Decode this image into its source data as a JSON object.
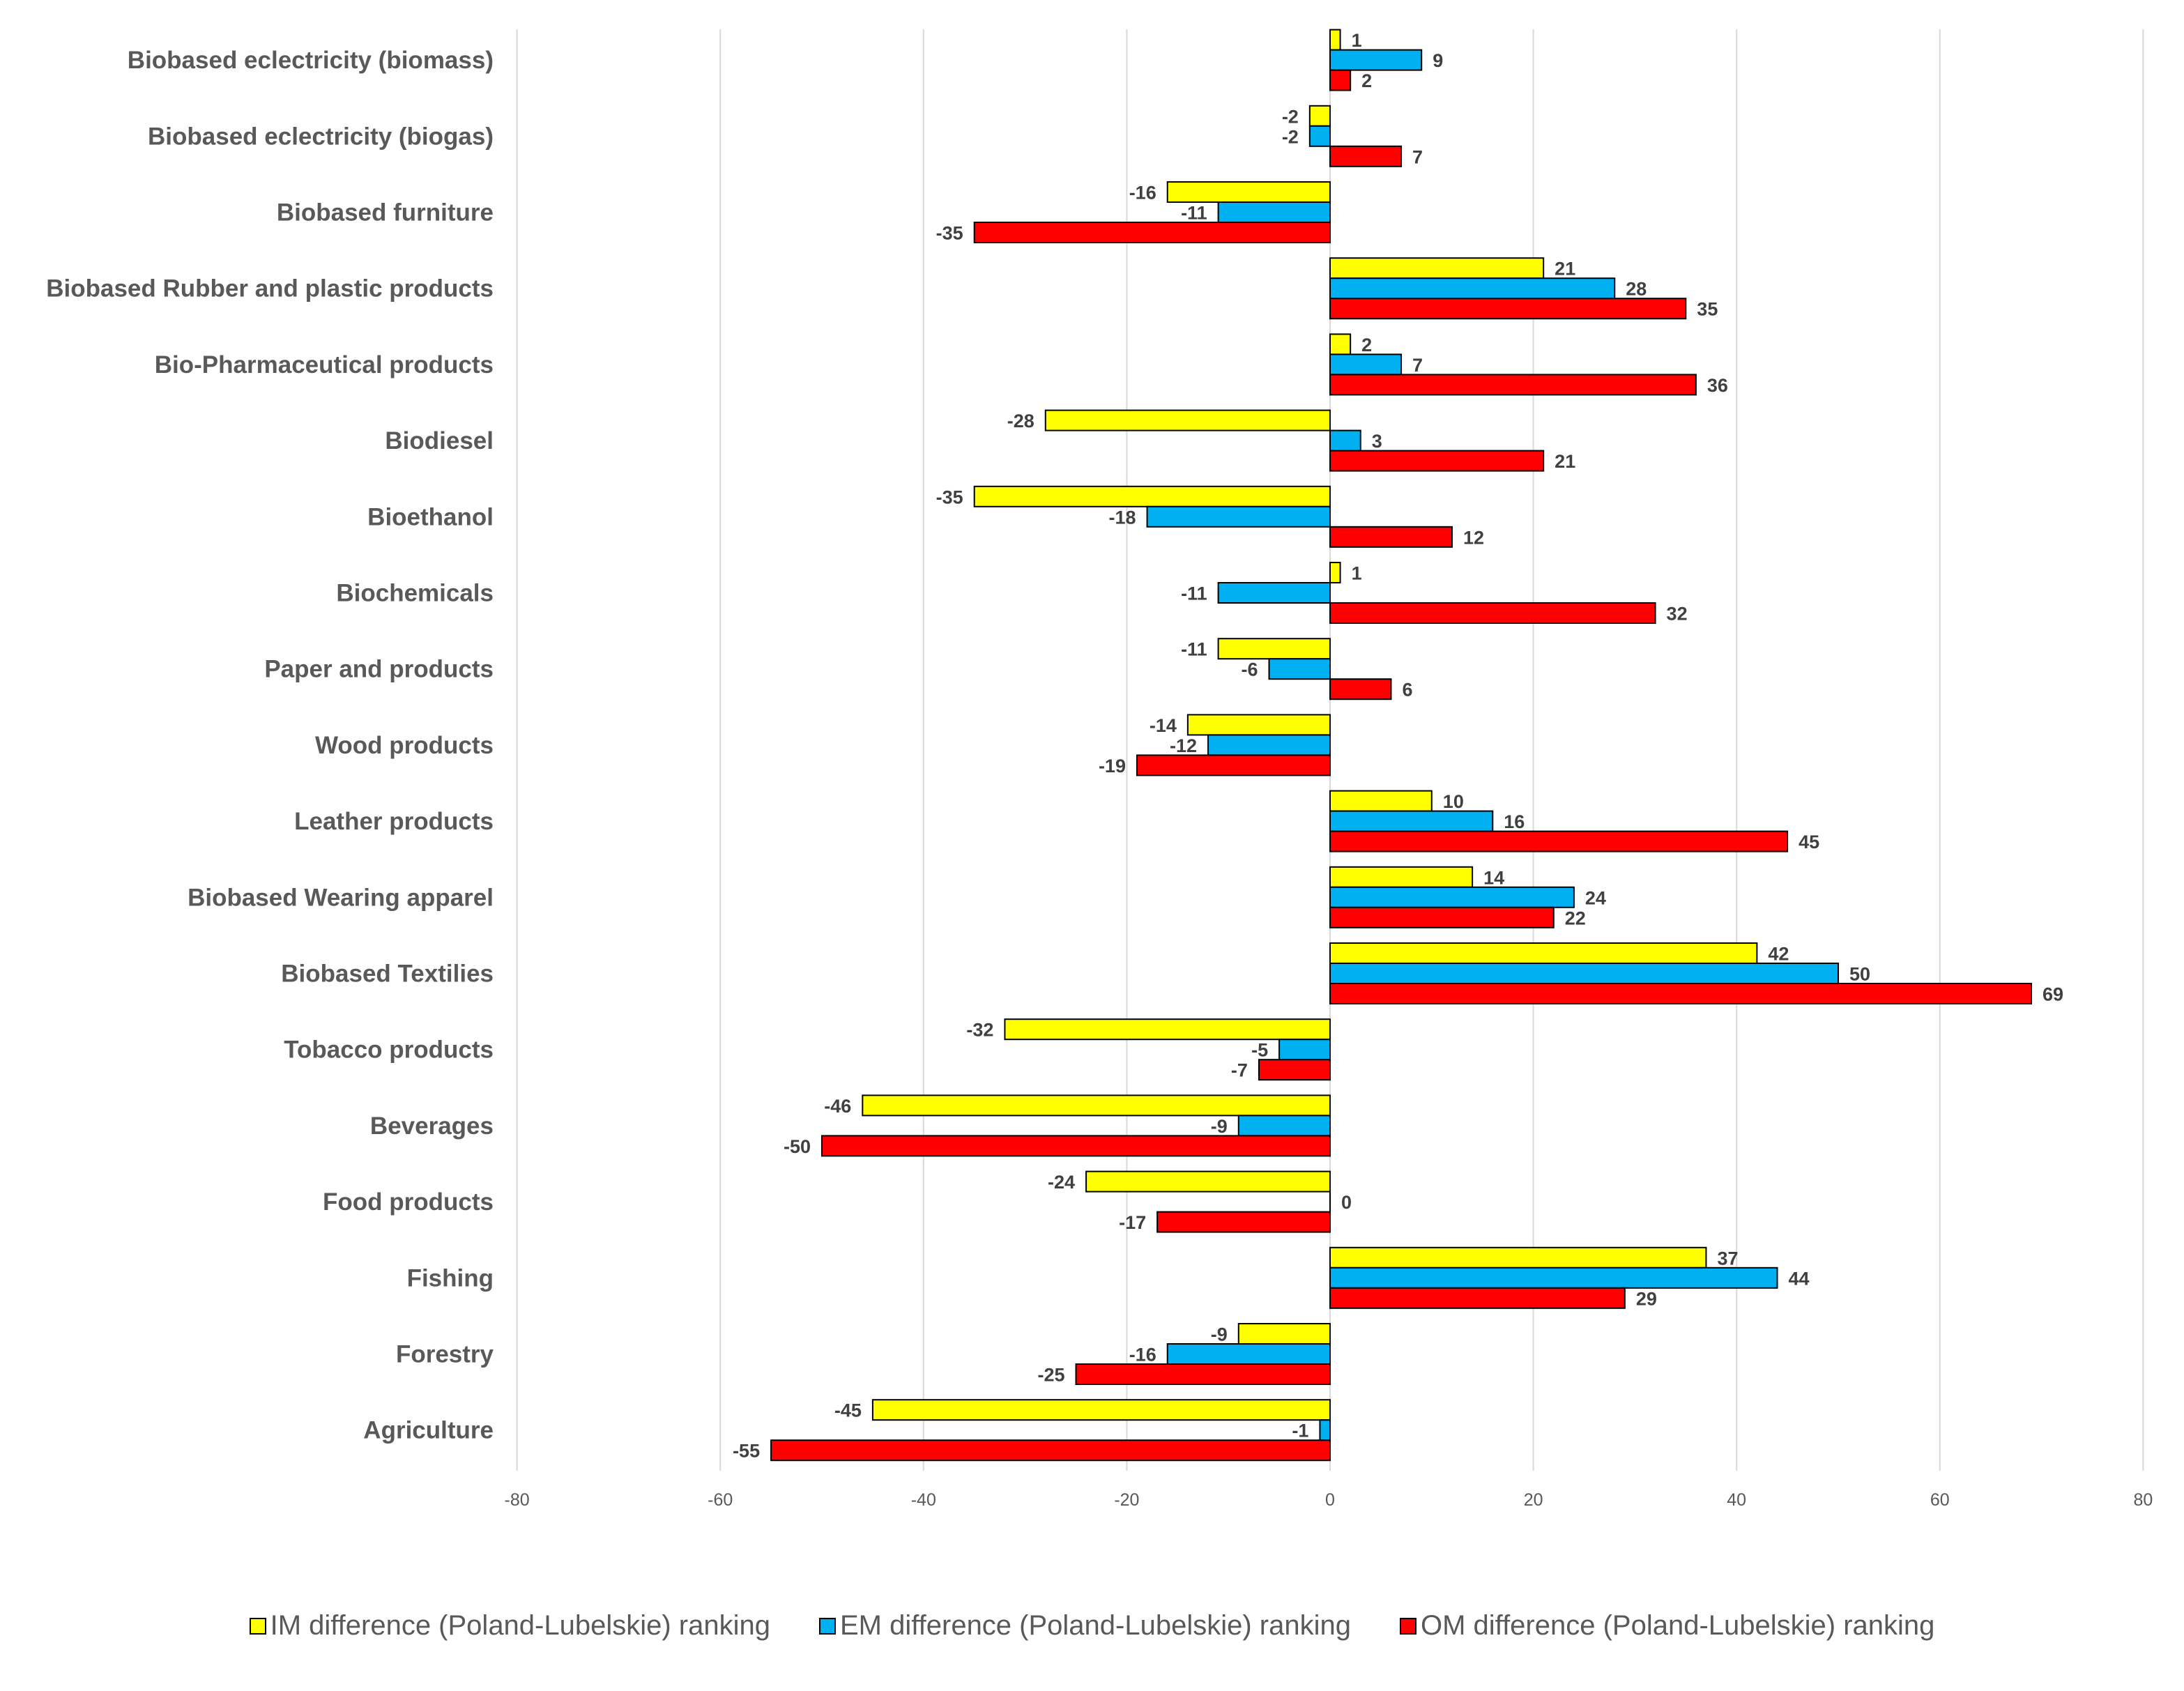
{
  "chart_data": {
    "type": "bar",
    "orientation": "horizontal",
    "title": "",
    "xlabel": "",
    "ylabel": "",
    "xlim": [
      -80,
      80
    ],
    "xticks": [
      -80,
      -60,
      -40,
      -20,
      0,
      20,
      40,
      60,
      80
    ],
    "grid": true,
    "legend_position": "bottom",
    "categories": [
      "Biobased eclectricity (biomass)",
      "Biobased eclectricity (biogas)",
      "Biobased furniture",
      "Biobased Rubber and plastic products",
      "Bio-Pharmaceutical products",
      "Biodiesel",
      "Bioethanol",
      "Biochemicals",
      "Paper and products",
      "Wood products",
      "Leather products",
      "Biobased Wearing apparel",
      "Biobased Textilies",
      "Tobacco products",
      "Beverages",
      "Food products",
      "Fishing",
      "Forestry",
      "Agriculture"
    ],
    "series": [
      {
        "name": "IM difference (Poland-Lubelskie) ranking",
        "color": "#FFFF00",
        "values": [
          1,
          -2,
          -16,
          21,
          2,
          -28,
          -35,
          1,
          -11,
          -14,
          10,
          14,
          42,
          -32,
          -46,
          -24,
          37,
          -9,
          -45
        ]
      },
      {
        "name": "EM difference (Poland-Lubelskie) ranking",
        "color": "#00B0F0",
        "values": [
          9,
          -2,
          -11,
          28,
          7,
          3,
          -18,
          -11,
          -6,
          -12,
          16,
          24,
          50,
          -5,
          -9,
          0,
          44,
          -16,
          -1
        ]
      },
      {
        "name": "OM difference (Poland-Lubelskie) ranking",
        "color": "#FF0000",
        "values": [
          2,
          7,
          -35,
          35,
          36,
          21,
          12,
          32,
          6,
          -19,
          45,
          22,
          69,
          -7,
          -50,
          -17,
          29,
          -25,
          -55
        ]
      }
    ]
  }
}
